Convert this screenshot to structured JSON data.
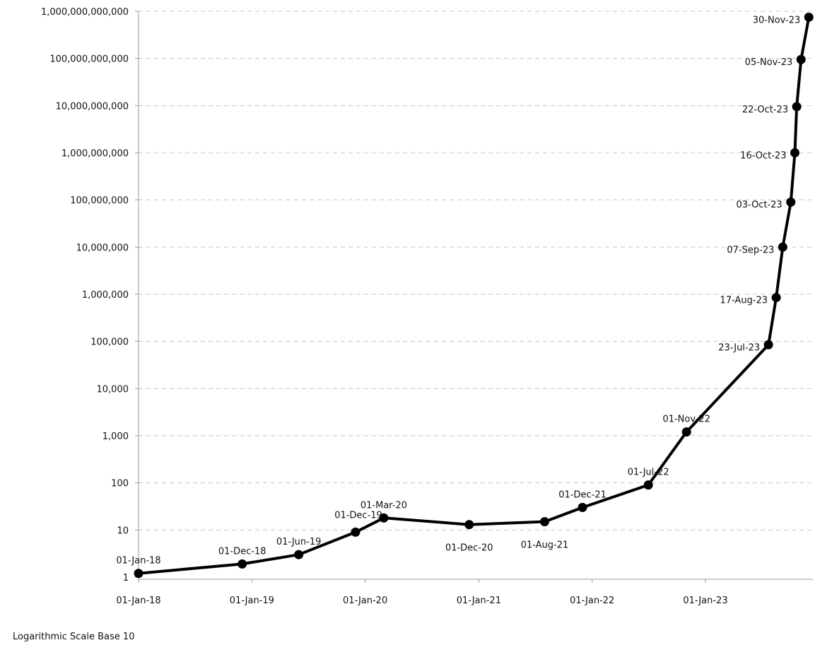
{
  "footnote": "Logarithmic Scale Base 10",
  "chart_data": {
    "type": "line",
    "title": "",
    "xlabel": "",
    "ylabel": "",
    "y_scale": "log10",
    "ylim": [
      1,
      1000000000000
    ],
    "xlim": [
      "2018-01-01",
      "2023-12-07"
    ],
    "grid": "horizontal dashed",
    "legend": "none",
    "line_color": "#000000",
    "marker": "filled circle",
    "y_ticks": [
      {
        "value": 1,
        "label": "1"
      },
      {
        "value": 10,
        "label": "10"
      },
      {
        "value": 100,
        "label": "100"
      },
      {
        "value": 1000,
        "label": "1,000"
      },
      {
        "value": 10000,
        "label": "10,000"
      },
      {
        "value": 100000,
        "label": "100,000"
      },
      {
        "value": 1000000,
        "label": "1,000,000"
      },
      {
        "value": 10000000,
        "label": "10,000,000"
      },
      {
        "value": 100000000,
        "label": "100,000,000"
      },
      {
        "value": 1000000000,
        "label": "1,000,000,000"
      },
      {
        "value": 10000000000,
        "label": "10,000,000,000"
      },
      {
        "value": 100000000000,
        "label": "100,000,000,000"
      },
      {
        "value": 1000000000000,
        "label": "1,000,000,000,000"
      }
    ],
    "x_ticks": [
      {
        "date": "2018-01-01",
        "label": "01-Jan-18"
      },
      {
        "date": "2019-01-01",
        "label": "01-Jan-19"
      },
      {
        "date": "2020-01-01",
        "label": "01-Jan-20"
      },
      {
        "date": "2021-01-01",
        "label": "01-Jan-21"
      },
      {
        "date": "2022-01-01",
        "label": "01-Jan-22"
      },
      {
        "date": "2023-01-01",
        "label": "01-Jan-23"
      }
    ],
    "points": [
      {
        "date": "2018-01-01",
        "label": "01-Jan-18",
        "value": 1.2,
        "anchor": "top"
      },
      {
        "date": "2018-12-01",
        "label": "01-Dec-18",
        "value": 1.9,
        "anchor": "top"
      },
      {
        "date": "2019-06-01",
        "label": "01-Jun-19",
        "value": 3,
        "anchor": "top"
      },
      {
        "date": "2019-12-01",
        "label": "01-Dec-19",
        "value": 9,
        "anchor": "top-right"
      },
      {
        "date": "2020-03-01",
        "label": "01-Mar-20",
        "value": 18,
        "anchor": "top"
      },
      {
        "date": "2020-12-01",
        "label": "01-Dec-20",
        "value": 13,
        "anchor": "bottom"
      },
      {
        "date": "2021-08-01",
        "label": "01-Aug-21",
        "value": 15,
        "anchor": "bottom"
      },
      {
        "date": "2021-12-01",
        "label": "01-Dec-21",
        "value": 30,
        "anchor": "top"
      },
      {
        "date": "2022-07-01",
        "label": "01-Jul-22",
        "value": 90,
        "anchor": "top"
      },
      {
        "date": "2022-11-01",
        "label": "01-Nov-22",
        "value": 1200,
        "anchor": "top"
      },
      {
        "date": "2023-07-23",
        "label": "23-Jul-23",
        "value": 85000,
        "anchor": "left"
      },
      {
        "date": "2023-08-17",
        "label": "17-Aug-23",
        "value": 850000,
        "anchor": "left"
      },
      {
        "date": "2023-09-07",
        "label": "07-Sep-23",
        "value": 10000000,
        "anchor": "left"
      },
      {
        "date": "2023-10-03",
        "label": "03-Oct-23",
        "value": 90000000,
        "anchor": "left"
      },
      {
        "date": "2023-10-16",
        "label": "16-Oct-23",
        "value": 1000000000,
        "anchor": "left"
      },
      {
        "date": "2023-10-22",
        "label": "22-Oct-23",
        "value": 9500000000,
        "anchor": "left"
      },
      {
        "date": "2023-11-05",
        "label": "05-Nov-23",
        "value": 95000000000,
        "anchor": "left"
      },
      {
        "date": "2023-11-30",
        "label": "30-Nov-23",
        "value": 750000000000,
        "anchor": "left"
      }
    ]
  }
}
